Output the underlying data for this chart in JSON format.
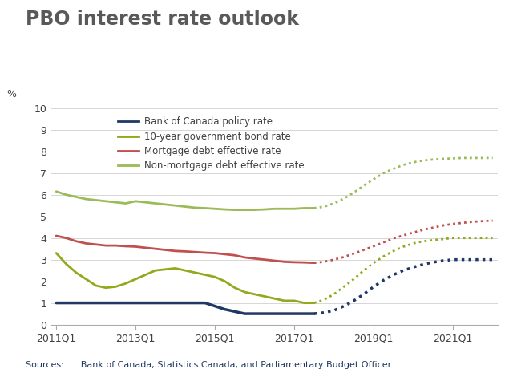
{
  "title": "PBO interest rate outlook",
  "pct_label": "%",
  "source_text": "Sources:      Bank of Canada; Statistics Canada; and Parliamentary Budget Officer.",
  "ylim": [
    0,
    10
  ],
  "yticks": [
    0,
    1,
    2,
    3,
    4,
    5,
    6,
    7,
    8,
    9,
    10
  ],
  "xtick_labels": [
    "2011Q1",
    "2013Q1",
    "2015Q1",
    "2017Q1",
    "2019Q1",
    "2021Q1"
  ],
  "xtick_positions": [
    0,
    8,
    16,
    24,
    32,
    40
  ],
  "background_color": "#ffffff",
  "title_color": "#595959",
  "title_fontsize": 17,
  "axes_color": "#aaaaaa",
  "tick_label_color": "#404040",
  "series": {
    "policy_rate": {
      "label": "Bank of Canada policy rate",
      "color": "#1f3864",
      "linewidth": 2.5,
      "solid_x": [
        0,
        1,
        2,
        3,
        4,
        5,
        6,
        7,
        8,
        9,
        10,
        11,
        12,
        13,
        14,
        15,
        16,
        17,
        18,
        19,
        20,
        21,
        22,
        23,
        24,
        25,
        26
      ],
      "solid_y": [
        1.0,
        1.0,
        1.0,
        1.0,
        1.0,
        1.0,
        1.0,
        1.0,
        1.0,
        1.0,
        1.0,
        1.0,
        1.0,
        1.0,
        1.0,
        1.0,
        0.85,
        0.7,
        0.6,
        0.5,
        0.5,
        0.5,
        0.5,
        0.5,
        0.5,
        0.5,
        0.5
      ],
      "dotted_x": [
        26,
        27,
        28,
        29,
        30,
        31,
        32,
        33,
        34,
        35,
        36,
        37,
        38,
        39,
        40,
        41,
        42,
        43,
        44
      ],
      "dotted_y": [
        0.5,
        0.55,
        0.65,
        0.85,
        1.1,
        1.4,
        1.75,
        2.05,
        2.3,
        2.5,
        2.65,
        2.78,
        2.88,
        2.95,
        3.0,
        3.0,
        3.0,
        3.0,
        3.0
      ]
    },
    "bond_rate": {
      "label": "10-year government bond rate",
      "color": "#8faa1c",
      "linewidth": 2.0,
      "solid_x": [
        0,
        1,
        2,
        3,
        4,
        5,
        6,
        7,
        8,
        9,
        10,
        11,
        12,
        13,
        14,
        15,
        16,
        17,
        18,
        19,
        20,
        21,
        22,
        23,
        24,
        25,
        26
      ],
      "solid_y": [
        3.3,
        2.8,
        2.4,
        2.1,
        1.8,
        1.7,
        1.75,
        1.9,
        2.1,
        2.3,
        2.5,
        2.55,
        2.6,
        2.5,
        2.4,
        2.3,
        2.2,
        2.0,
        1.7,
        1.5,
        1.4,
        1.3,
        1.2,
        1.1,
        1.1,
        1.0,
        1.0
      ],
      "dotted_x": [
        26,
        27,
        28,
        29,
        30,
        31,
        32,
        33,
        34,
        35,
        36,
        37,
        38,
        39,
        40,
        41,
        42,
        43,
        44
      ],
      "dotted_y": [
        1.0,
        1.15,
        1.4,
        1.75,
        2.1,
        2.5,
        2.85,
        3.15,
        3.4,
        3.6,
        3.75,
        3.85,
        3.9,
        3.95,
        4.0,
        4.0,
        4.0,
        4.0,
        4.0
      ]
    },
    "mortgage_rate": {
      "label": "Mortgage debt effective rate",
      "color": "#c0504d",
      "linewidth": 2.0,
      "solid_x": [
        0,
        1,
        2,
        3,
        4,
        5,
        6,
        7,
        8,
        9,
        10,
        11,
        12,
        13,
        14,
        15,
        16,
        17,
        18,
        19,
        20,
        21,
        22,
        23,
        24,
        25,
        26
      ],
      "solid_y": [
        4.1,
        4.0,
        3.85,
        3.75,
        3.7,
        3.65,
        3.65,
        3.62,
        3.6,
        3.55,
        3.5,
        3.45,
        3.4,
        3.38,
        3.35,
        3.32,
        3.3,
        3.25,
        3.2,
        3.1,
        3.05,
        3.0,
        2.95,
        2.9,
        2.88,
        2.87,
        2.85
      ],
      "dotted_x": [
        26,
        27,
        28,
        29,
        30,
        31,
        32,
        33,
        34,
        35,
        36,
        37,
        38,
        39,
        40,
        41,
        42,
        43,
        44
      ],
      "dotted_y": [
        2.85,
        2.9,
        3.0,
        3.12,
        3.28,
        3.45,
        3.62,
        3.8,
        3.98,
        4.12,
        4.25,
        4.38,
        4.48,
        4.58,
        4.65,
        4.7,
        4.75,
        4.78,
        4.8
      ]
    },
    "nonmortgage_rate": {
      "label": "Non-mortgage debt effective rate",
      "color": "#9bbb59",
      "linewidth": 2.0,
      "solid_x": [
        0,
        1,
        2,
        3,
        4,
        5,
        6,
        7,
        8,
        9,
        10,
        11,
        12,
        13,
        14,
        15,
        16,
        17,
        18,
        19,
        20,
        21,
        22,
        23,
        24,
        25,
        26
      ],
      "solid_y": [
        6.15,
        6.0,
        5.9,
        5.8,
        5.75,
        5.7,
        5.65,
        5.6,
        5.7,
        5.65,
        5.6,
        5.55,
        5.5,
        5.45,
        5.4,
        5.38,
        5.35,
        5.32,
        5.3,
        5.3,
        5.3,
        5.32,
        5.35,
        5.35,
        5.35,
        5.38,
        5.38
      ],
      "dotted_x": [
        26,
        27,
        28,
        29,
        30,
        31,
        32,
        33,
        34,
        35,
        36,
        37,
        38,
        39,
        40,
        41,
        42,
        43,
        44
      ],
      "dotted_y": [
        5.38,
        5.45,
        5.6,
        5.82,
        6.1,
        6.42,
        6.72,
        7.0,
        7.2,
        7.38,
        7.5,
        7.58,
        7.63,
        7.66,
        7.68,
        7.7,
        7.7,
        7.7,
        7.7
      ]
    }
  }
}
